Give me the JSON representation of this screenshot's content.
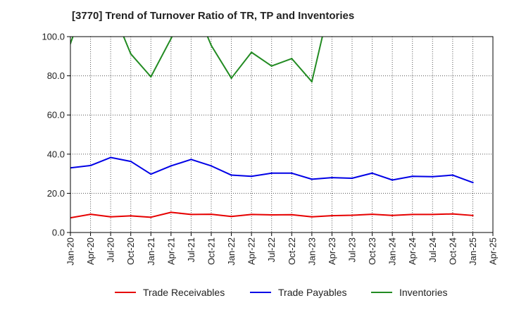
{
  "chart_data": {
    "type": "line",
    "title": "[3770]  Trend of Turnover Ratio of TR, TP and Inventories",
    "xlabel": "",
    "ylabel": "",
    "ylim": [
      0,
      100
    ],
    "yticks": [
      "0.0",
      "20.0",
      "40.0",
      "60.0",
      "80.0",
      "100.0"
    ],
    "grid": "vertical dotted at each quarter; horizontal dotted at each y tick",
    "legend_position": "bottom",
    "x": [
      "Jan-20",
      "Apr-20",
      "Jul-20",
      "Oct-20",
      "Jan-21",
      "Apr-21",
      "Jul-21",
      "Oct-21",
      "Jan-22",
      "Apr-22",
      "Jul-22",
      "Oct-22",
      "Jan-23",
      "Apr-23",
      "Jul-23",
      "Oct-23",
      "Jan-24",
      "Apr-24",
      "Jul-24",
      "Oct-24",
      "Jan-25",
      "Apr-25"
    ],
    "x_tick_labels": [
      "Jan-20",
      "Apr-20",
      "Jul-20",
      "Oct-20",
      "Jan-21",
      "Apr-21",
      "Jul-21",
      "Oct-21",
      "Jan-22",
      "Apr-22",
      "Jul-22",
      "Oct-22",
      "Jan-23",
      "Apr-23",
      "Jul-23",
      "Oct-23",
      "Jan-24",
      "Apr-24",
      "Jul-24",
      "Oct-24",
      "Jan-25",
      "Apr-25"
    ],
    "series": [
      {
        "name": "Trade Receivables",
        "color": "#e60000",
        "values": [
          7.5,
          9.3,
          8.0,
          8.5,
          7.8,
          10.3,
          9.2,
          9.3,
          8.2,
          9.2,
          9.0,
          9.1,
          8.0,
          8.6,
          8.8,
          9.3,
          8.7,
          9.2,
          9.2,
          9.5,
          8.7,
          null
        ]
      },
      {
        "name": "Trade Payables",
        "color": "#0000e6",
        "values": [
          33.0,
          34.2,
          38.3,
          36.3,
          29.8,
          34.0,
          37.3,
          34.0,
          29.3,
          28.7,
          30.3,
          30.3,
          27.2,
          28.0,
          27.7,
          30.3,
          26.8,
          28.7,
          28.5,
          29.3,
          25.5,
          null
        ]
      },
      {
        "name": "Inventories",
        "color": "#228b22",
        "values": [
          96.5,
          125.0,
          116.0,
          91.2,
          79.5,
          99.0,
          120.0,
          95.5,
          78.8,
          92.0,
          85.0,
          88.8,
          77.0,
          121.0,
          null,
          null,
          null,
          null,
          null,
          null,
          null,
          null
        ]
      }
    ]
  }
}
